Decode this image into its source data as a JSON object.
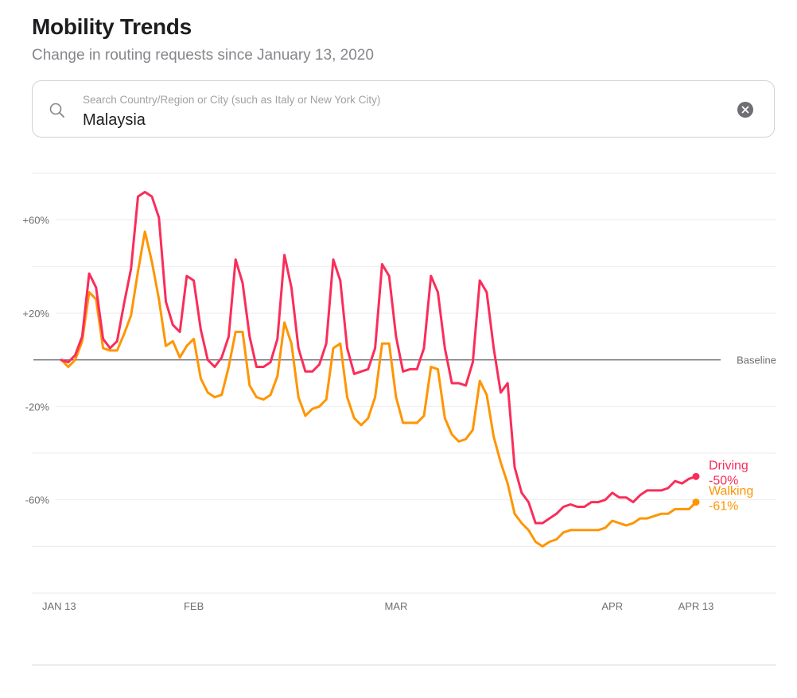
{
  "header": {
    "title": "Mobility Trends",
    "subtitle": "Change in routing requests since January 13, 2020"
  },
  "search": {
    "placeholder": "Search Country/Region or City (such as Italy or New York City)",
    "value": "Malaysia",
    "search_icon": "search-icon",
    "clear_icon": "clear-circle-icon"
  },
  "colors": {
    "driving": "#fa2d5a",
    "walking": "#ff9500",
    "baseline": "#6e6e73",
    "grid": "#ebebed",
    "axis_text": "#6e6e73"
  },
  "chart_data": {
    "type": "line",
    "title": "Mobility Trends",
    "subtitle": "Change in routing requests since January 13, 2020",
    "xlabel": "",
    "ylabel": "",
    "x_start": "2020-01-13",
    "x_end": "2020-04-13",
    "x_tick_labels": [
      {
        "label": "JAN 13",
        "day": 0
      },
      {
        "label": "FEB",
        "day": 19
      },
      {
        "label": "MAR",
        "day": 48
      },
      {
        "label": "APR",
        "day": 79
      },
      {
        "label": "APR 13",
        "day": 91
      }
    ],
    "y_tick_labels": [
      {
        "label": "+60%",
        "value": 60
      },
      {
        "label": "+20%",
        "value": 20
      },
      {
        "label": "-20%",
        "value": -20
      },
      {
        "label": "-60%",
        "value": -60
      }
    ],
    "gridlines": [
      80,
      60,
      40,
      20,
      -20,
      -40,
      -60,
      -80,
      -100
    ],
    "ylim": [
      -100,
      80
    ],
    "grid": true,
    "baseline": {
      "value": 0,
      "label": "Baseline"
    },
    "legend_placement": "right-end-labels",
    "series": [
      {
        "name": "Driving",
        "end_label": "-50%",
        "values": [
          0,
          -1,
          2,
          10,
          37,
          31,
          9,
          5,
          8,
          24,
          39,
          70,
          72,
          70,
          61,
          25,
          15,
          12,
          36,
          34,
          13,
          0,
          -3,
          1,
          10,
          43,
          33,
          10,
          -3,
          -3,
          -1,
          9,
          45,
          31,
          5,
          -5,
          -5,
          -2,
          7,
          43,
          34,
          5,
          -6,
          -5,
          -4,
          5,
          41,
          36,
          10,
          -5,
          -4,
          -4,
          5,
          36,
          29,
          5,
          -10,
          -10,
          -11,
          -1,
          34,
          29,
          5,
          -14,
          -10,
          -46,
          -57,
          -61,
          -70,
          -70,
          -68,
          -66,
          -63,
          -62,
          -63,
          -63,
          -61,
          -61,
          -60,
          -57,
          -59,
          -59,
          -61,
          -58,
          -56,
          -56,
          -56,
          -55,
          -52,
          -53,
          -51,
          -50
        ]
      },
      {
        "name": "Walking",
        "end_label": "-61%",
        "values": [
          0,
          -3,
          0,
          8,
          29,
          26,
          5,
          4,
          4,
          11,
          19,
          38,
          55,
          42,
          26,
          6,
          8,
          1,
          6,
          9,
          -8,
          -14,
          -16,
          -15,
          -3,
          12,
          12,
          -11,
          -16,
          -17,
          -15,
          -7,
          16,
          7,
          -16,
          -24,
          -21,
          -20,
          -17,
          5,
          7,
          -16,
          -25,
          -28,
          -25,
          -16,
          7,
          7,
          -16,
          -27,
          -27,
          -27,
          -24,
          -3,
          -4,
          -25,
          -32,
          -35,
          -34,
          -30,
          -9,
          -15,
          -33,
          -44,
          -53,
          -66,
          -70,
          -73,
          -78,
          -80,
          -78,
          -77,
          -74,
          -73,
          -73,
          -73,
          -73,
          -73,
          -72,
          -69,
          -70,
          -71,
          -70,
          -68,
          -68,
          -67,
          -66,
          -66,
          -64,
          -64,
          -64,
          -61
        ]
      }
    ]
  }
}
